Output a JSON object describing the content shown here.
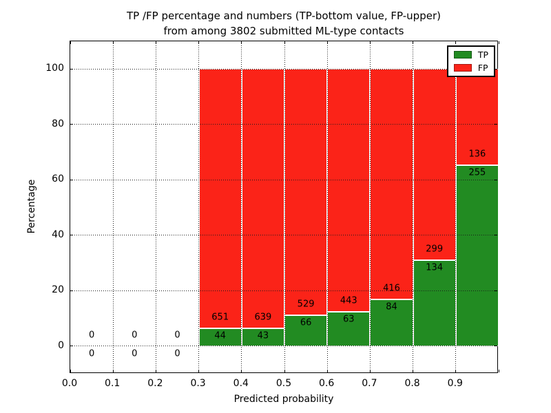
{
  "figure": {
    "title_line1": "TP /FP percentage and numbers (TP-bottom value, FP-upper)",
    "title_line2": "from among 3802 submitted ML-type contacts",
    "xlabel": "Predicted probability",
    "ylabel": "Percentage"
  },
  "chart_data": {
    "type": "bar",
    "stacked": true,
    "title": "TP /FP percentage and numbers (TP-bottom value, FP-upper) from among 3802 submitted ML-type contacts",
    "xlabel": "Predicted probability",
    "ylabel": "Percentage",
    "xlim": [
      0.0,
      1.0
    ],
    "ylim": [
      -10,
      110
    ],
    "xtick_labels": [
      "0.0",
      "0.1",
      "0.2",
      "0.3",
      "0.4",
      "0.5",
      "0.6",
      "0.7",
      "0.8",
      "0.9"
    ],
    "ytick_values": [
      0,
      20,
      40,
      60,
      80,
      100
    ],
    "grid": "dotted",
    "bin_width": 0.1,
    "total_contacts": 3802,
    "colors": {
      "tp": "#228b22",
      "fp": "#fb2318",
      "bar_edge": "#ffffff"
    },
    "legend": {
      "position": "upper right",
      "entries": [
        {
          "label": "TP",
          "series": "tp"
        },
        {
          "label": "FP",
          "series": "fp"
        }
      ]
    },
    "bins": [
      {
        "x_start": 0.0,
        "tp": 0,
        "fp": 0
      },
      {
        "x_start": 0.1,
        "tp": 0,
        "fp": 0
      },
      {
        "x_start": 0.2,
        "tp": 0,
        "fp": 0
      },
      {
        "x_start": 0.3,
        "tp": 44,
        "fp": 651
      },
      {
        "x_start": 0.4,
        "tp": 43,
        "fp": 639
      },
      {
        "x_start": 0.5,
        "tp": 66,
        "fp": 529
      },
      {
        "x_start": 0.6,
        "tp": 63,
        "fp": 443
      },
      {
        "x_start": 0.7,
        "tp": 84,
        "fp": 416
      },
      {
        "x_start": 0.8,
        "tp": 134,
        "fp": 299
      },
      {
        "x_start": 0.9,
        "tp": 255,
        "fp": 136
      }
    ]
  }
}
